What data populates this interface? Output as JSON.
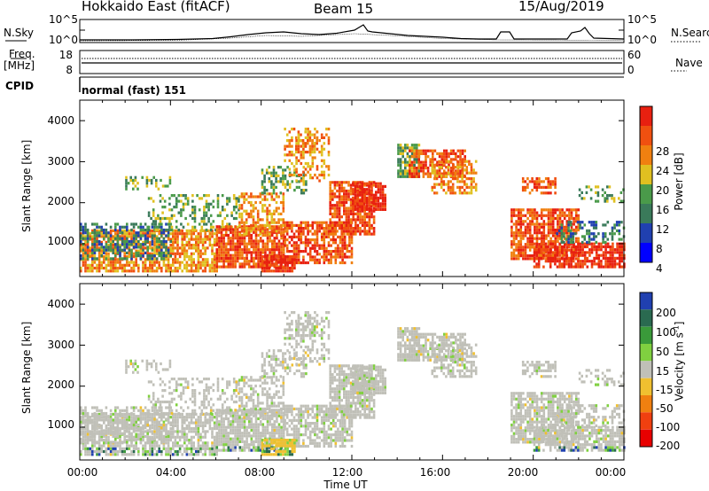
{
  "header": {
    "station": "Hokkaido East (fitACF)",
    "beam": "Beam 15",
    "date": "15/Aug/2019"
  },
  "top_panels": {
    "nsky_label": "N.Sky",
    "nsearch_label": "N.Search",
    "freq_label_line1": "Freq.",
    "freq_label_line2": "[MHz]",
    "nave_label": "Nave",
    "cpid_label": "CPID",
    "cpid_value": "normal (fast) 151",
    "noise_ticks": [
      "10^5",
      "10^0"
    ],
    "noise_ticks_right": [
      "10^5",
      "10^0"
    ],
    "freq_ticks": [
      "18",
      "8"
    ],
    "nave_ticks": [
      "60",
      "0"
    ]
  },
  "chart_data": [
    {
      "type": "heatmap",
      "name": "power",
      "ylabel": "Slant Range [km]",
      "yticks": [
        "4000",
        "3000",
        "2000",
        "1000"
      ],
      "colorbar_label": "Power [dB]",
      "colorbar_ticks": [
        "28",
        "24",
        "20",
        "16",
        "12",
        "8",
        "4"
      ],
      "colors": [
        "#0000ff",
        "#2040b0",
        "#3a7a5a",
        "#4a9a4a",
        "#e0c020",
        "#f08010",
        "#f05010",
        "#e82010"
      ]
    },
    {
      "type": "heatmap",
      "name": "velocity",
      "ylabel": "Slant Range [km]",
      "yticks": [
        "4000",
        "3000",
        "2000",
        "1000"
      ],
      "colorbar_label": "Velocity [m s",
      "colorbar_label_sup": "-1",
      "colorbar_label_end": "]",
      "colorbar_ticks": [
        "200",
        "100",
        "50",
        "15",
        "-15",
        "-50",
        "-100",
        "-200"
      ],
      "colors": [
        "#2040b0",
        "#2a6a50",
        "#3a9a3a",
        "#80d040",
        "#c0c0b8",
        "#f0c030",
        "#f08010",
        "#f04010",
        "#e80000"
      ]
    }
  ],
  "xaxis": {
    "ticks": [
      "00:00",
      "04:00",
      "08:00",
      "12:00",
      "16:00",
      "20:00",
      "00:00"
    ],
    "label": "Time UT"
  }
}
